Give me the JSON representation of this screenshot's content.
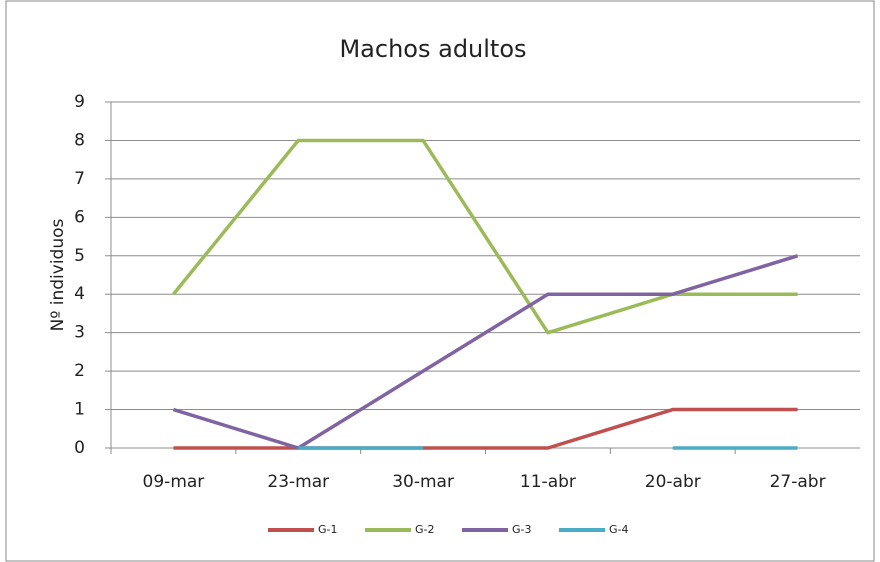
{
  "chart_data": {
    "type": "line",
    "title": "Machos adultos",
    "y_label": "Nº individuos",
    "categories": [
      "09-mar",
      "23-mar",
      "30-mar",
      "11-abr",
      "20-abr",
      "27-abr"
    ],
    "series": [
      {
        "name": "G-1",
        "color": "#c0504d",
        "values": [
          0,
          0,
          0,
          0,
          1,
          1
        ]
      },
      {
        "name": "G-2",
        "color": "#9bbb59",
        "values": [
          4,
          8,
          8,
          3,
          4,
          4
        ]
      },
      {
        "name": "G-3",
        "color": "#8064a2",
        "values": [
          1,
          0,
          2,
          4,
          4,
          5
        ]
      },
      {
        "name": "G-4",
        "color": "#4bacc6",
        "values": [
          null,
          0,
          0,
          null,
          0,
          0
        ]
      }
    ],
    "ylim": [
      0,
      9
    ],
    "yticks": [
      0,
      1,
      2,
      3,
      4,
      5,
      6,
      7,
      8,
      9
    ],
    "grid": true,
    "legend": "bottom"
  }
}
